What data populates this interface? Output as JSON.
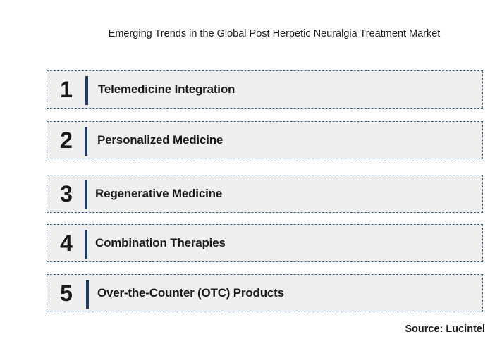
{
  "title": "Emerging Trends in the Global Post Herpetic Neuralgia Treatment Market",
  "trends": [
    {
      "number": "1",
      "label": "Telemedicine Integration"
    },
    {
      "number": "2",
      "label": "Personalized Medicine"
    },
    {
      "number": "3",
      "label": "Regenerative Medicine"
    },
    {
      "number": "4",
      "label": "Combination Therapies"
    },
    {
      "number": "5",
      "label": "Over-the-Counter (OTC) Products"
    }
  ],
  "source": "Source: Lucintel",
  "colors": {
    "row_fill": "#efefef",
    "row_border": "#3a5f86",
    "accent_bar": "#1f3b63",
    "text": "#1a1a1a"
  }
}
